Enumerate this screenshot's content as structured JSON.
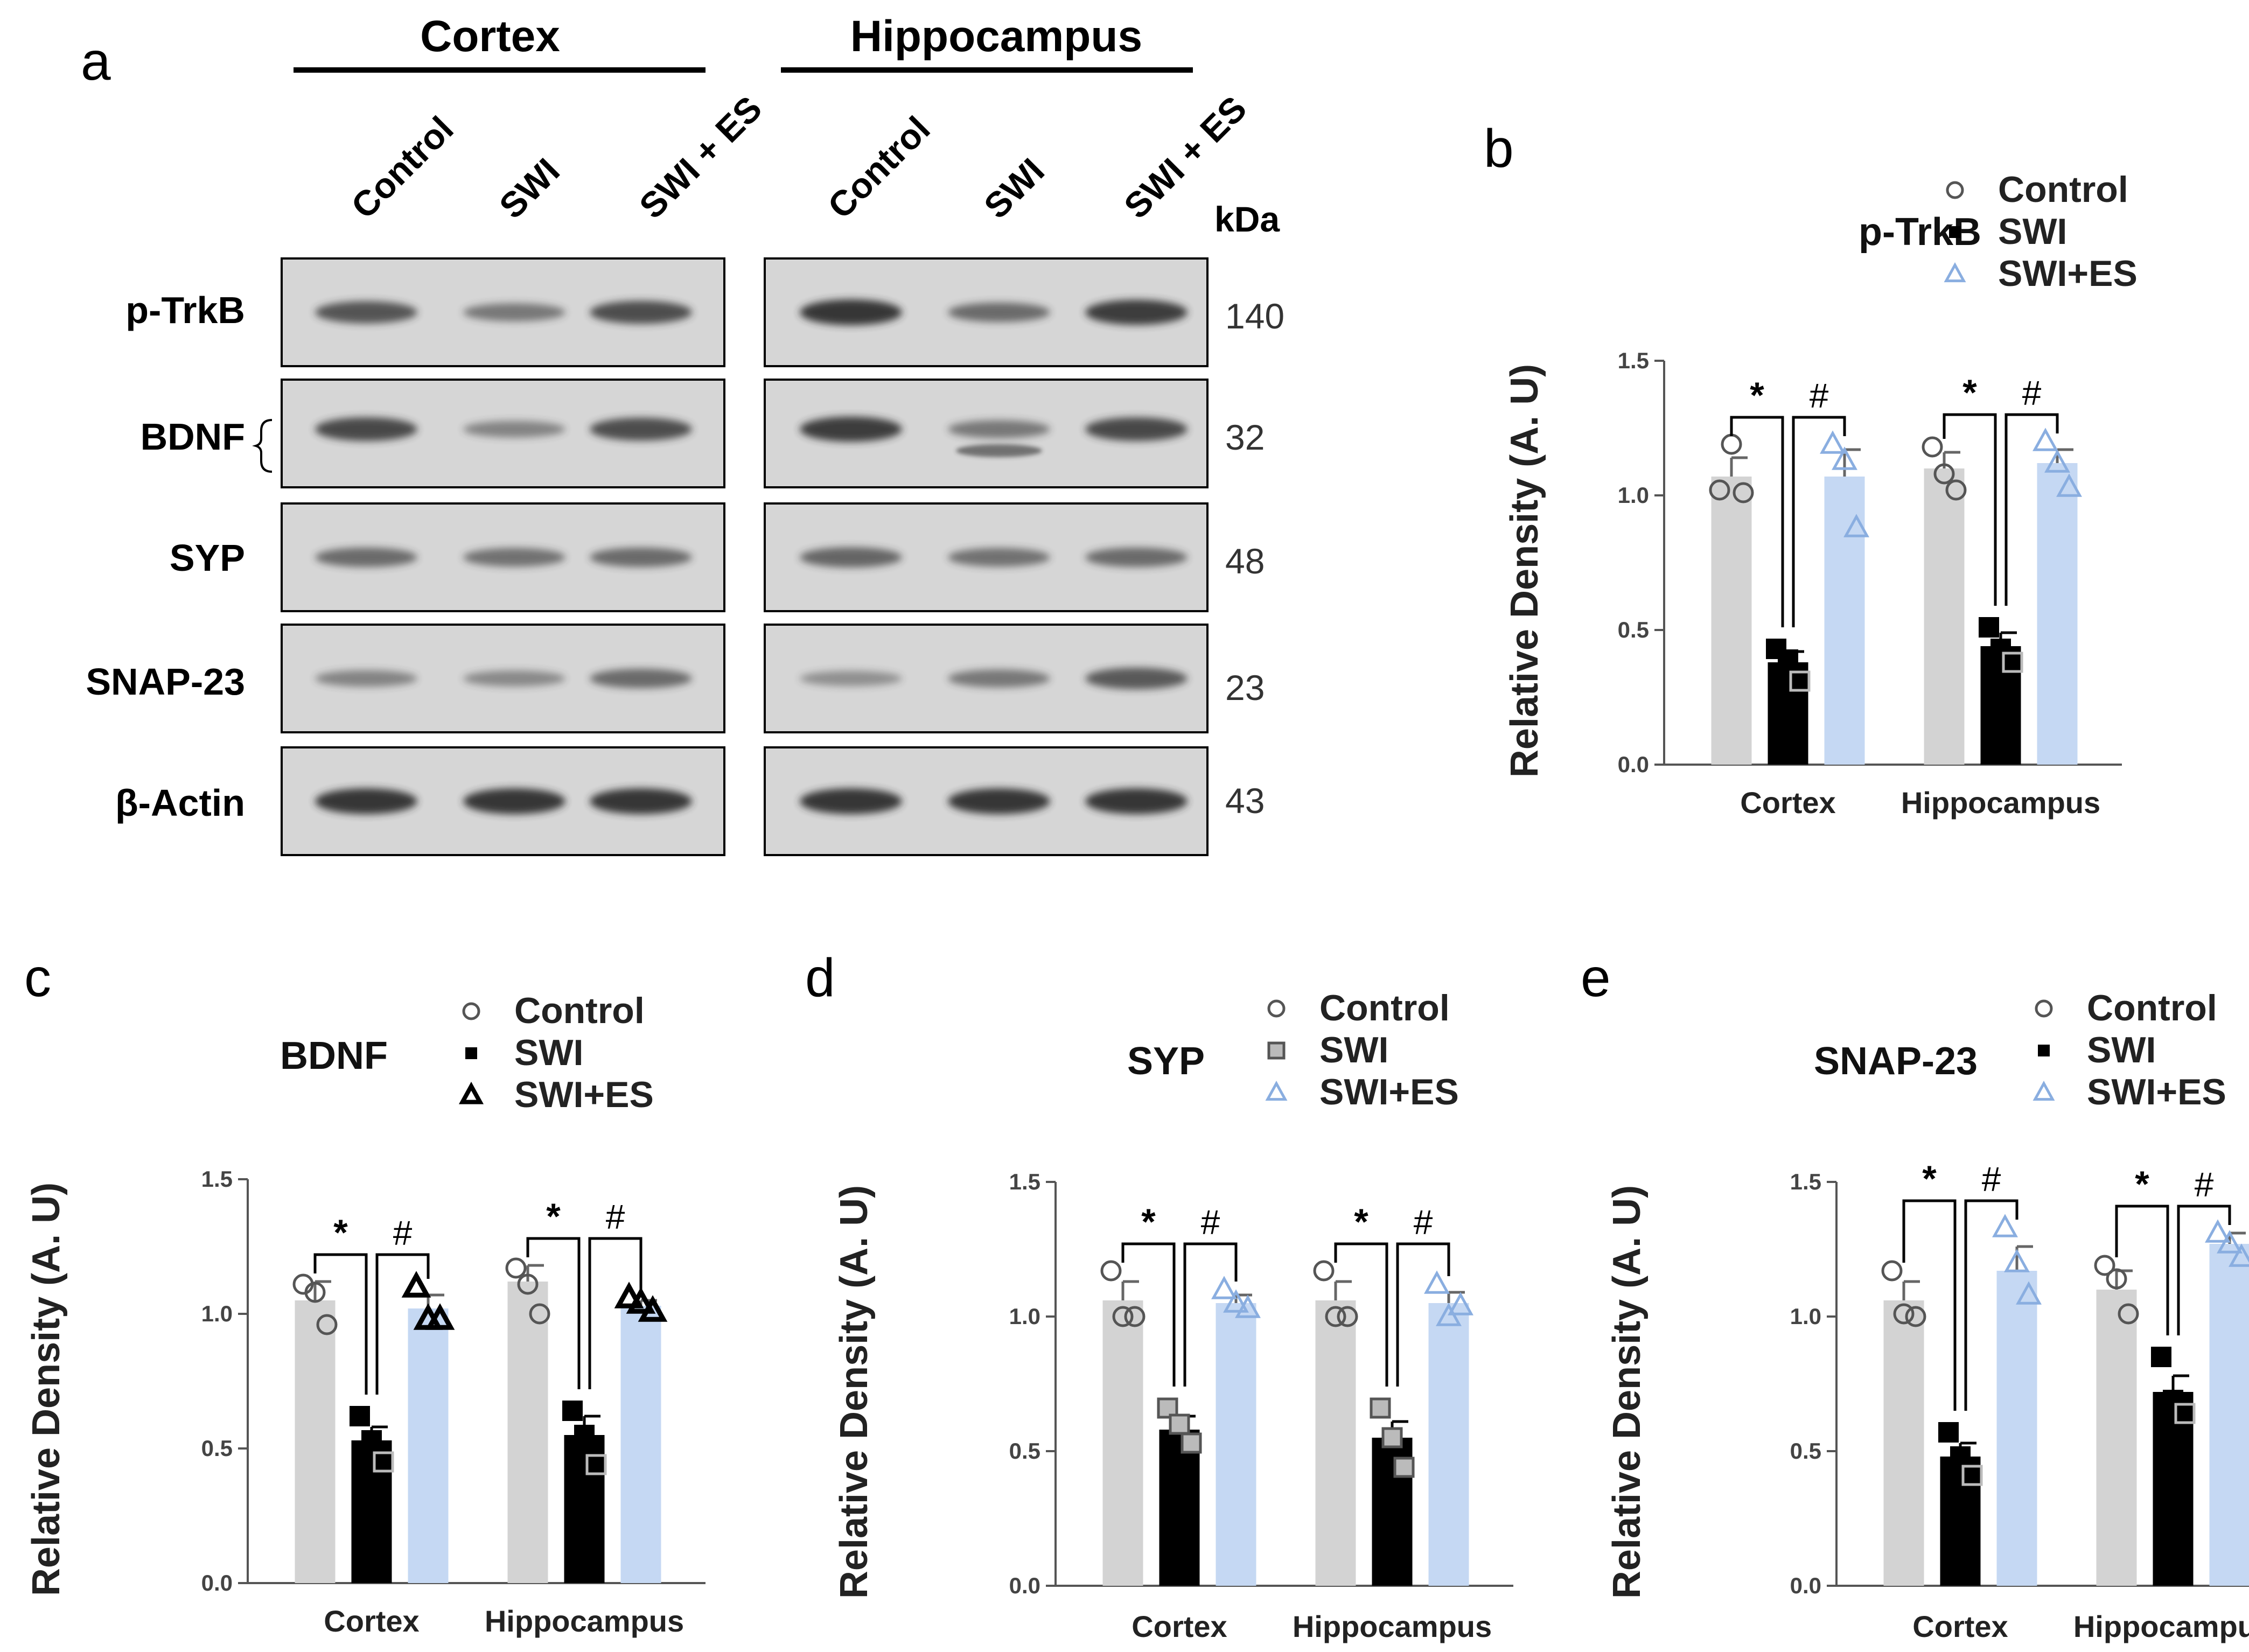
{
  "colors": {
    "control_bar": "#d3d3d3",
    "swi_bar": "#000000",
    "swies_bar": "#c5d8f3",
    "swies_marker": "#8aaee0",
    "control_marker": "#555555",
    "blot_bg": "#d6d6d6",
    "band": "#2e2e2e"
  },
  "panel_a": {
    "label": "a",
    "regions": [
      "Cortex",
      "Hippocampus"
    ],
    "lanes": [
      "Control",
      "SWI",
      "SWI + ES"
    ],
    "kda_label": "kDa",
    "rows": [
      {
        "name": "p-TrkB",
        "kda": "140",
        "cortex": [
          0.75,
          0.45,
          0.8
        ],
        "hippo": [
          1.0,
          0.55,
          0.95
        ]
      },
      {
        "name": "BDNF",
        "kda": "32",
        "cortex": [
          0.85,
          0.35,
          0.8
        ],
        "hippo": [
          0.95,
          0.45,
          0.85
        ]
      },
      {
        "name": "SYP",
        "kda": "48",
        "cortex": [
          0.55,
          0.5,
          0.55
        ],
        "hippo": [
          0.6,
          0.5,
          0.55
        ]
      },
      {
        "name": "SNAP-23",
        "kda": "23",
        "cortex": [
          0.35,
          0.3,
          0.55
        ],
        "hippo": [
          0.25,
          0.45,
          0.7
        ]
      },
      {
        "name": "β-Actin",
        "kda": "43",
        "cortex": [
          1.0,
          1.0,
          1.0
        ],
        "hippo": [
          1.0,
          1.0,
          1.0
        ]
      }
    ]
  },
  "chart_data": [
    {
      "panel": "b",
      "type": "bar",
      "title": "p-TrkB",
      "ylabel": "Relative Density (A. U)",
      "ylim": [
        0,
        1.5
      ],
      "yticks": [
        "0.0",
        "0.5",
        "1.0",
        "1.5"
      ],
      "categories": [
        "Cortex",
        "Hippocampus"
      ],
      "legend": [
        "Control",
        "SWI",
        "SWI+ES"
      ],
      "series": [
        {
          "name": "Control",
          "values": [
            1.07,
            1.1
          ],
          "sem": [
            0.07,
            0.06
          ],
          "points": [
            [
              1.02,
              1.19,
              1.01
            ],
            [
              1.18,
              1.08,
              1.02
            ]
          ]
        },
        {
          "name": "SWI",
          "values": [
            0.38,
            0.44
          ],
          "sem": [
            0.04,
            0.05
          ],
          "points": [
            [
              0.43,
              0.39,
              0.31
            ],
            [
              0.51,
              0.43,
              0.38
            ]
          ]
        },
        {
          "name": "SWI+ES",
          "values": [
            1.07,
            1.12
          ],
          "sem": [
            0.1,
            0.05
          ],
          "points": [
            [
              1.19,
              1.13,
              0.88
            ],
            [
              1.2,
              1.12,
              1.03
            ]
          ]
        }
      ],
      "annotations": [
        [
          "*",
          "#"
        ],
        [
          "*",
          "#"
        ]
      ]
    },
    {
      "panel": "c",
      "type": "bar",
      "title": "BDNF",
      "ylabel": "Relative Density (A. U)",
      "ylim": [
        0,
        1.5
      ],
      "yticks": [
        "0.0",
        "0.5",
        "1.0",
        "1.5"
      ],
      "categories": [
        "Cortex",
        "Hippocampus"
      ],
      "legend": [
        "Control",
        "SWI",
        "SWI+ES"
      ],
      "series": [
        {
          "name": "Control",
          "values": [
            1.05,
            1.12
          ],
          "sem": [
            0.07,
            0.06
          ],
          "points": [
            [
              1.11,
              1.08,
              0.96
            ],
            [
              1.17,
              1.11,
              1.0
            ]
          ]
        },
        {
          "name": "SWI",
          "values": [
            0.53,
            0.55
          ],
          "sem": [
            0.05,
            0.07
          ],
          "points": [
            [
              0.62,
              0.53,
              0.45
            ],
            [
              0.64,
              0.55,
              0.44
            ]
          ]
        },
        {
          "name": "SWI+ES",
          "values": [
            1.02,
            1.03
          ],
          "sem": [
            0.05,
            0.02
          ],
          "points": [
            [
              1.1,
              0.98,
              0.98
            ],
            [
              1.06,
              1.04,
              1.01
            ]
          ]
        }
      ],
      "annotations": [
        [
          "*",
          "#"
        ],
        [
          "*",
          "#"
        ]
      ]
    },
    {
      "panel": "d",
      "type": "bar",
      "title": "SYP",
      "ylabel": "Relative Density (A. U)",
      "ylim": [
        0,
        1.5
      ],
      "yticks": [
        "0.0",
        "0.5",
        "1.0",
        "1.5"
      ],
      "categories": [
        "Cortex",
        "Hippocampus"
      ],
      "legend": [
        "Control",
        "SWI",
        "SWI+ES"
      ],
      "series": [
        {
          "name": "Control",
          "values": [
            1.06,
            1.06
          ],
          "sem": [
            0.07,
            0.07
          ],
          "points": [
            [
              1.17,
              1.0,
              1.0
            ],
            [
              1.17,
              1.0,
              1.0
            ]
          ]
        },
        {
          "name": "SWI",
          "values": [
            0.58,
            0.55
          ],
          "sem": [
            0.05,
            0.06
          ],
          "points": [
            [
              0.66,
              0.6,
              0.53
            ],
            [
              0.66,
              0.55,
              0.44
            ]
          ]
        },
        {
          "name": "SWI+ES",
          "values": [
            1.05,
            1.05
          ],
          "sem": [
            0.03,
            0.04
          ],
          "points": [
            [
              1.1,
              1.05,
              1.03
            ],
            [
              1.12,
              1.0,
              1.04
            ]
          ]
        }
      ],
      "annotations": [
        [
          "*",
          "#"
        ],
        [
          "*",
          "#"
        ]
      ]
    },
    {
      "panel": "e",
      "type": "bar",
      "title": "SNAP-23",
      "ylabel": "Relative Density (A. U)",
      "ylim": [
        0,
        1.5
      ],
      "yticks": [
        "0.0",
        "0.5",
        "1.0",
        "1.5"
      ],
      "categories": [
        "Cortex",
        "Hippocampus"
      ],
      "legend": [
        "Control",
        "SWI",
        "SWI+ES"
      ],
      "series": [
        {
          "name": "Control",
          "values": [
            1.06,
            1.1
          ],
          "sem": [
            0.07,
            0.07
          ],
          "points": [
            [
              1.17,
              1.01,
              1.0
            ],
            [
              1.19,
              1.14,
              1.01
            ]
          ]
        },
        {
          "name": "SWI",
          "values": [
            0.48,
            0.72
          ],
          "sem": [
            0.05,
            0.06
          ],
          "points": [
            [
              0.57,
              0.48,
              0.41
            ],
            [
              0.85,
              0.69,
              0.64
            ]
          ]
        },
        {
          "name": "SWI+ES",
          "values": [
            1.17,
            1.27
          ],
          "sem": [
            0.09,
            0.04
          ],
          "points": [
            [
              1.33,
              1.2,
              1.08
            ],
            [
              1.31,
              1.27,
              1.22
            ]
          ]
        }
      ],
      "annotations": [
        [
          "*",
          "#"
        ],
        [
          "*",
          "#"
        ]
      ]
    }
  ]
}
